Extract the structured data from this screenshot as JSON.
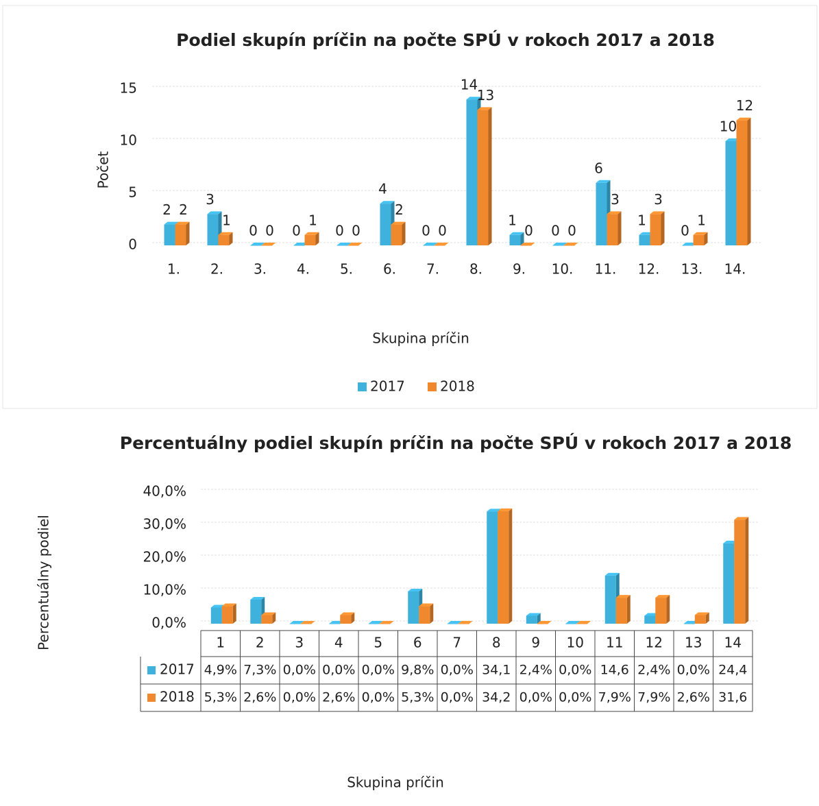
{
  "chart_data": [
    {
      "type": "bar",
      "title": "Podiel skupín príčin na počte SPÚ v rokoch 2017 a 2018",
      "ylabel": "Počet",
      "xlabel": "Skupina príčin",
      "categories": [
        "1.",
        "2.",
        "3.",
        "4.",
        "5.",
        "6.",
        "7.",
        "8.",
        "9.",
        "10.",
        "11.",
        "12.",
        "13.",
        "14."
      ],
      "series": [
        {
          "name": "2017",
          "color": "#3fb1dd",
          "values": [
            2,
            3,
            0,
            0,
            0,
            4,
            0,
            14,
            1,
            0,
            6,
            1,
            0,
            10
          ]
        },
        {
          "name": "2018",
          "color": "#f0892e",
          "values": [
            2,
            1,
            0,
            1,
            0,
            2,
            0,
            13,
            0,
            0,
            3,
            3,
            1,
            12
          ]
        }
      ],
      "ylim": [
        0,
        15
      ],
      "yticks": [
        0,
        5,
        10,
        15
      ],
      "grid": true,
      "legend": "bottom"
    },
    {
      "type": "bar-table",
      "title": "Percentuálny podiel skupín príčin na počte SPÚ v rokoch 2017 a 2018",
      "ylabel": "Percentuálny podiel",
      "xlabel": "Skupina príčin",
      "categories": [
        "1",
        "2",
        "3",
        "4",
        "5",
        "6",
        "7",
        "8",
        "9",
        "10",
        "11",
        "12",
        "13",
        "14"
      ],
      "series": [
        {
          "name": "2017",
          "color": "#3fb1dd",
          "values": [
            4.9,
            7.3,
            0,
            0,
            0,
            9.8,
            0,
            34.1,
            2.4,
            0,
            14.6,
            2.4,
            0,
            24.4
          ],
          "value_labels": [
            "4,9%",
            "7,3%",
            "0,0%",
            "0,0%",
            "0,0%",
            "9,8%",
            "0,0%",
            "34,1",
            "2,4%",
            "0,0%",
            "14,6",
            "2,4%",
            "0,0%",
            "24,4"
          ]
        },
        {
          "name": "2018",
          "color": "#f0892e",
          "values": [
            5.3,
            2.6,
            0,
            2.6,
            0,
            5.3,
            0,
            34.2,
            0,
            0,
            7.9,
            7.9,
            2.6,
            31.6
          ],
          "value_labels": [
            "5,3%",
            "2,6%",
            "0,0%",
            "2,6%",
            "0,0%",
            "5,3%",
            "0,0%",
            "34,2",
            "0,0%",
            "0,0%",
            "7,9%",
            "7,9%",
            "2,6%",
            "31,6"
          ]
        }
      ],
      "ylim": [
        0,
        40
      ],
      "yticks": [
        {
          "value": 0,
          "label": "0,0%"
        },
        {
          "value": 10,
          "label": "10,0%"
        },
        {
          "value": 20,
          "label": "20,0%"
        },
        {
          "value": 30,
          "label": "30,0%"
        },
        {
          "value": 40,
          "label": "40,0%"
        }
      ],
      "grid": true
    }
  ]
}
